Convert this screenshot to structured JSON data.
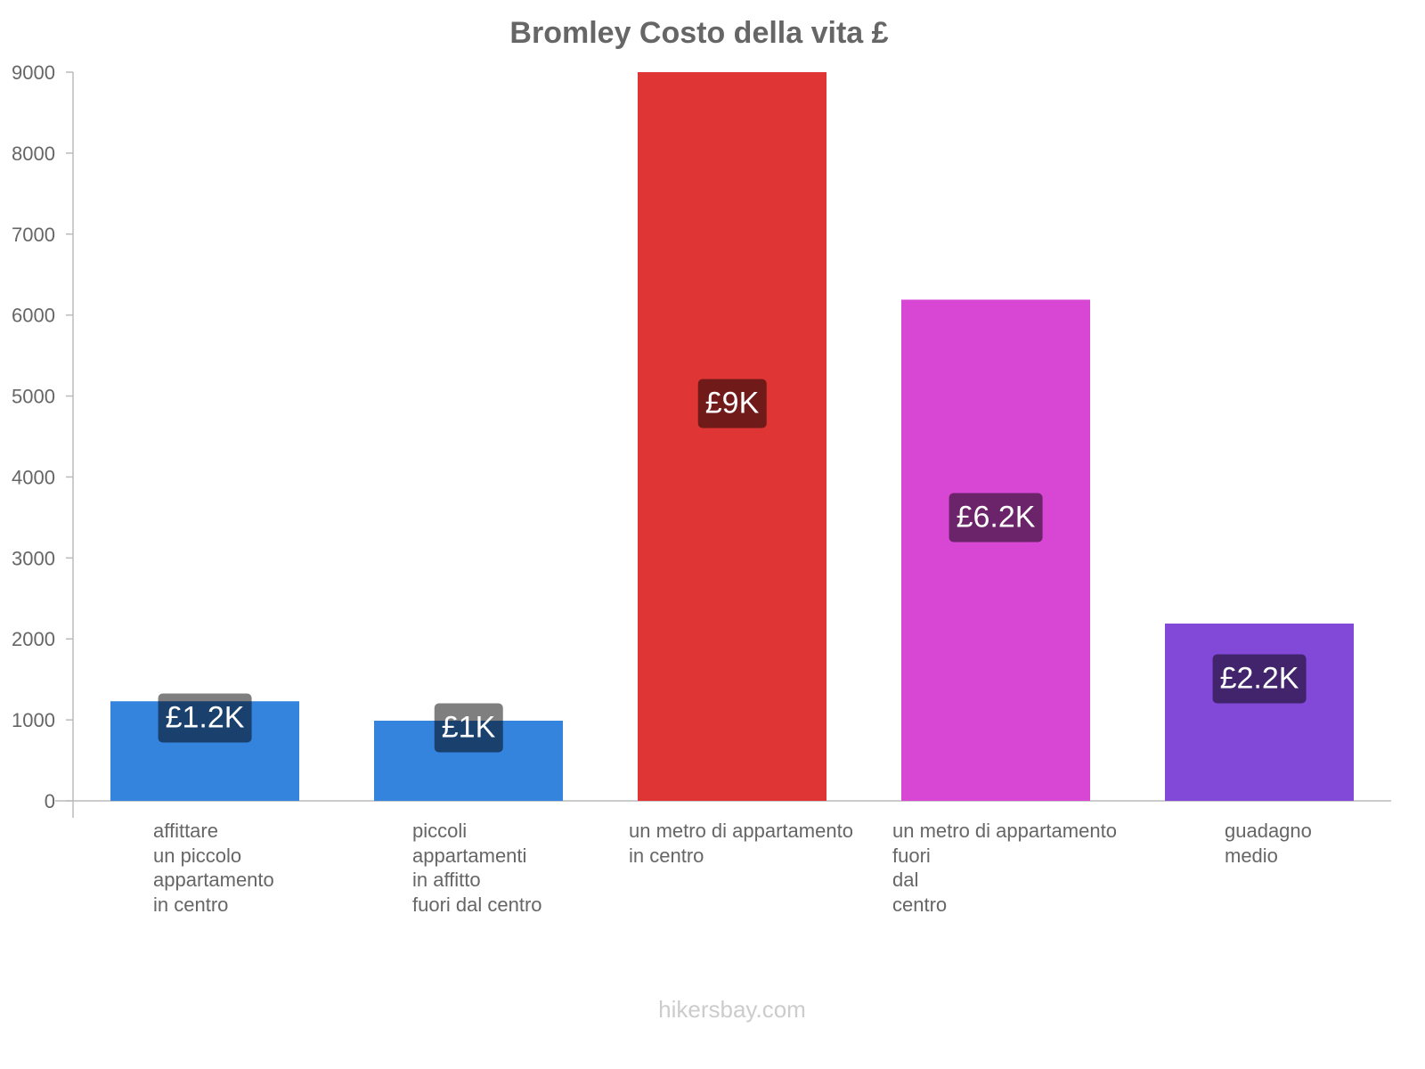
{
  "chart_data": {
    "type": "bar",
    "title": "Bromley Costo della vita £",
    "xlabel": "",
    "ylabel": "",
    "ylim": [
      0,
      9000
    ],
    "yticks": [
      0,
      1000,
      2000,
      3000,
      4000,
      5000,
      6000,
      7000,
      8000,
      9000
    ],
    "categories": [
      [
        "affittare",
        "un piccolo",
        "appartamento",
        "in centro"
      ],
      [
        "piccoli",
        "appartamenti",
        "in affitto",
        "fuori dal centro"
      ],
      [
        "un metro di appartamento",
        "in centro"
      ],
      [
        "un metro di appartamento",
        "fuori",
        "dal",
        "centro"
      ],
      [
        "guadagno",
        "medio"
      ]
    ],
    "values": [
      1230,
      990,
      9000,
      6190,
      2190
    ],
    "data_labels": [
      "£1.2K",
      "£1K",
      "£9K",
      "£6.2K",
      "£2.2K"
    ],
    "colors": [
      "#3483dd",
      "#3483dd",
      "#e03535",
      "#d747d4",
      "#8248d8"
    ],
    "grid": false,
    "legend": "none"
  },
  "footer": "hikersbay.com"
}
